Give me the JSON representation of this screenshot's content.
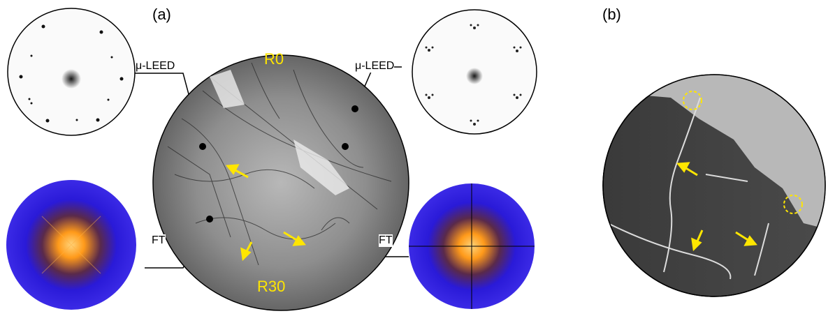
{
  "panel_labels": {
    "a": "(a)",
    "b": "(b)"
  },
  "callouts": {
    "leed_left": "μ-LEED",
    "leed_right": "μ-LEED",
    "ft_left": "FT",
    "ft_right": "FT"
  },
  "regions": {
    "top": "R0",
    "bottom": "R30"
  },
  "colors": {
    "arrow": "#ffe600",
    "ft_background": "#2a1ad8",
    "ft_center": "#ff9a1a",
    "leeds_spot": "#111111",
    "leem_background": "#7a7a7a"
  },
  "icons": [
    "arrow-icon",
    "dashed-circle-icon",
    "marker-dot-icon"
  ]
}
